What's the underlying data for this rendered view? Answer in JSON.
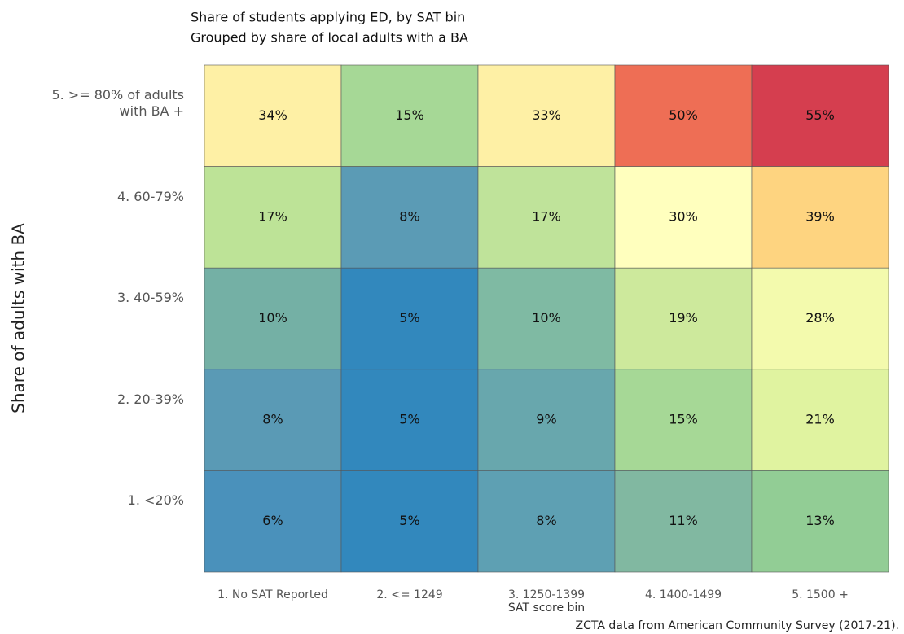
{
  "chart_data": {
    "type": "heatmap",
    "title": "Share of students applying ED, by SAT bin",
    "subtitle": "Grouped by share of local adults with a BA",
    "xlabel": "SAT score bin",
    "ylabel": "Share of adults with BA",
    "annotation": "ZCTA data from American Community Survey (2017-21).",
    "x_categories": [
      "1. No SAT Reported",
      "2. <= 1249",
      "3. 1250-1399",
      "4. 1400-1499",
      "5. 1500 +"
    ],
    "y_categories": [
      "5. >= 80% of adults with BA +",
      "4. 60-79%",
      "3. 40-59%",
      "2. 20-39%",
      "1. <20%"
    ],
    "values": [
      [
        34,
        15,
        33,
        50,
        55
      ],
      [
        17,
        8,
        17,
        30,
        39
      ],
      [
        10,
        5,
        10,
        19,
        28
      ],
      [
        8,
        5,
        9,
        15,
        21
      ],
      [
        6,
        5,
        8,
        11,
        13
      ]
    ],
    "value_labels": [
      [
        "34%",
        "15%",
        "33%",
        "50%",
        "55%"
      ],
      [
        "17%",
        "8%",
        "17%",
        "30%",
        "39%"
      ],
      [
        "10%",
        "5%",
        "10%",
        "19%",
        "28%"
      ],
      [
        "8%",
        "5%",
        "9%",
        "15%",
        "21%"
      ],
      [
        "6%",
        "5%",
        "8%",
        "11%",
        "13%"
      ]
    ],
    "colors": [
      [
        "#fef0a5",
        "#a6d896",
        "#fef0a5",
        "#ee6e55",
        "#d53e4f"
      ],
      [
        "#bde397",
        "#5b9bb5",
        "#bfe39a",
        "#ffffbe",
        "#fed480"
      ],
      [
        "#74b0a5",
        "#3288bd",
        "#7fbaa3",
        "#cde99c",
        "#f3faad"
      ],
      [
        "#5a9ab5",
        "#3288bd",
        "#68a7ad",
        "#a6d896",
        "#e0f3a0"
      ],
      [
        "#4a91bb",
        "#3288bd",
        "#5ea0b3",
        "#81b8a1",
        "#92cd95"
      ]
    ]
  }
}
